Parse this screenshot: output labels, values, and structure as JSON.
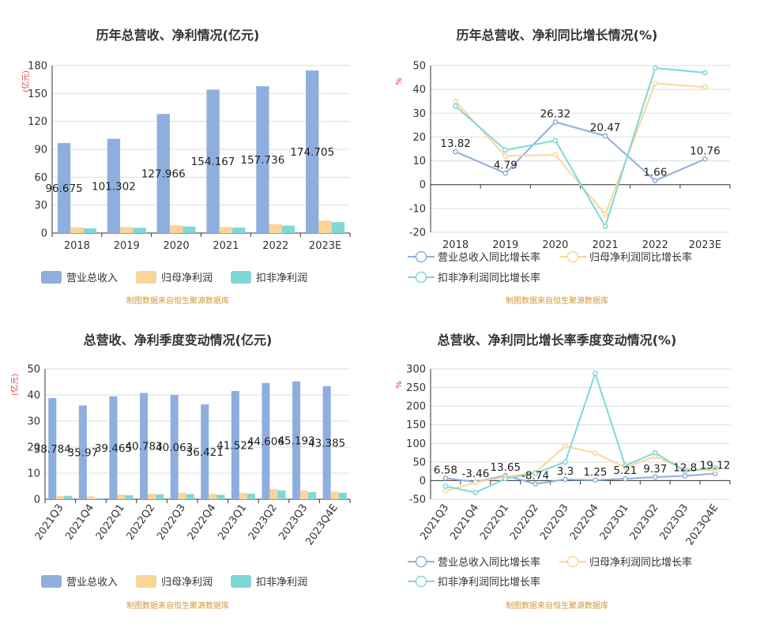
{
  "source_note": "制图数据来自恒生聚源数据库",
  "colors": {
    "revenue": "#8eaede",
    "parent": "#fbd597",
    "deducted": "#7fd8d6"
  },
  "chart_data": [
    {
      "id": "c1",
      "type": "bar",
      "title": "历年总营收、净利情况(亿元)",
      "ylabel": "(亿元)",
      "ylim": [
        0,
        180
      ],
      "yticks": [
        0,
        30,
        60,
        90,
        120,
        150,
        180
      ],
      "categories": [
        "2018",
        "2019",
        "2020",
        "2021",
        "2022",
        "2023E"
      ],
      "series": [
        {
          "name": "营业总收入",
          "key": "revenue",
          "values": [
            96.675,
            101.302,
            127.966,
            154.167,
            157.736,
            174.705
          ],
          "labels": [
            "96.675",
            "101.302",
            "127.966",
            "154.167",
            "157.736",
            "174.705"
          ]
        },
        {
          "name": "归母净利润",
          "key": "parent",
          "values": [
            6.3,
            6.6,
            8.3,
            6.6,
            9.5,
            13.3
          ]
        },
        {
          "name": "扣非净利润",
          "key": "deducted",
          "values": [
            5.0,
            5.7,
            7.0,
            5.9,
            8.0,
            11.7
          ]
        }
      ]
    },
    {
      "id": "c2",
      "type": "line",
      "title": "历年总营收、净利同比增长情况(%)",
      "ylabel": "%",
      "ylim": [
        -20,
        50
      ],
      "yticks": [
        -20,
        -10,
        0,
        10,
        20,
        30,
        40,
        50
      ],
      "categories": [
        "2018",
        "2019",
        "2020",
        "2021",
        "2022",
        "2023E"
      ],
      "series": [
        {
          "name": "营业总收入同比增长率",
          "key": "revenue",
          "values": [
            13.82,
            4.79,
            26.32,
            20.47,
            1.66,
            10.76
          ],
          "labels": [
            "13.82",
            "4.79",
            "26.32",
            "20.47",
            "1.66",
            "10.76"
          ]
        },
        {
          "name": "归母净利润同比增长率",
          "key": "parent",
          "values": [
            35,
            12,
            12.5,
            -12.5,
            42.5,
            41
          ]
        },
        {
          "name": "扣非净利润同比增长率",
          "key": "deducted",
          "values": [
            33,
            14.5,
            18.5,
            -17.5,
            49,
            47
          ]
        }
      ]
    },
    {
      "id": "c3",
      "type": "bar",
      "title": "总营收、净利季度变动情况(亿元)",
      "ylabel": "(亿元)",
      "ylim": [
        0,
        50
      ],
      "yticks": [
        0,
        10,
        20,
        30,
        40,
        50
      ],
      "categories": [
        "2021Q3",
        "2021Q4",
        "2022Q1",
        "2022Q2",
        "2022Q3",
        "2022Q4",
        "2023Q1",
        "2023Q2",
        "2023Q3",
        "2023Q4E"
      ],
      "series": [
        {
          "name": "营业总收入",
          "key": "revenue",
          "values": [
            38.784,
            35.97,
            39.465,
            40.783,
            40.063,
            36.421,
            41.522,
            44.606,
            45.193,
            43.385
          ],
          "labels": [
            "38.784",
            "35.97",
            "39.465",
            "40.783",
            "40.063",
            "36.421",
            "41.522",
            "44.606",
            "45.193",
            "43.385"
          ]
        },
        {
          "name": "归母净利润",
          "key": "parent",
          "values": [
            1.2,
            1.1,
            1.8,
            2.1,
            2.5,
            2.0,
            2.4,
            3.9,
            3.3,
            2.9
          ]
        },
        {
          "name": "扣非净利润",
          "key": "deducted",
          "values": [
            1.3,
            0.4,
            1.5,
            1.9,
            2.0,
            1.7,
            2.1,
            3.4,
            2.7,
            2.5
          ]
        }
      ]
    },
    {
      "id": "c4",
      "type": "line",
      "title": "总营收、净利同比增长率季度变动情况(%)",
      "ylabel": "%",
      "ylim": [
        -50,
        300
      ],
      "yticks": [
        -50,
        0,
        50,
        100,
        150,
        200,
        250,
        300
      ],
      "categories": [
        "2021Q3",
        "2021Q4",
        "2022Q1",
        "2022Q2",
        "2022Q3",
        "2022Q4",
        "2023Q1",
        "2023Q2",
        "2023Q3",
        "2023Q4E"
      ],
      "series": [
        {
          "name": "营业总收入同比增长率",
          "key": "revenue",
          "values": [
            6.58,
            -3.46,
            13.65,
            -8.74,
            3.3,
            1.25,
            5.21,
            9.37,
            12.8,
            19.12
          ],
          "labels": [
            "6.58",
            "-3.46",
            "13.65",
            "-8.74",
            "3.3",
            "1.25",
            "5.21",
            "9.37",
            "12.8",
            "19.12"
          ]
        },
        {
          "name": "归母净利润同比增长率",
          "key": "parent",
          "values": [
            -28,
            -5,
            10,
            22,
            93,
            74,
            35,
            65,
            30,
            28
          ]
        },
        {
          "name": "扣非净利润同比增长率",
          "key": "deducted",
          "values": [
            -15,
            -32,
            5,
            20,
            50,
            288,
            40,
            75,
            25,
            35
          ]
        }
      ]
    }
  ]
}
